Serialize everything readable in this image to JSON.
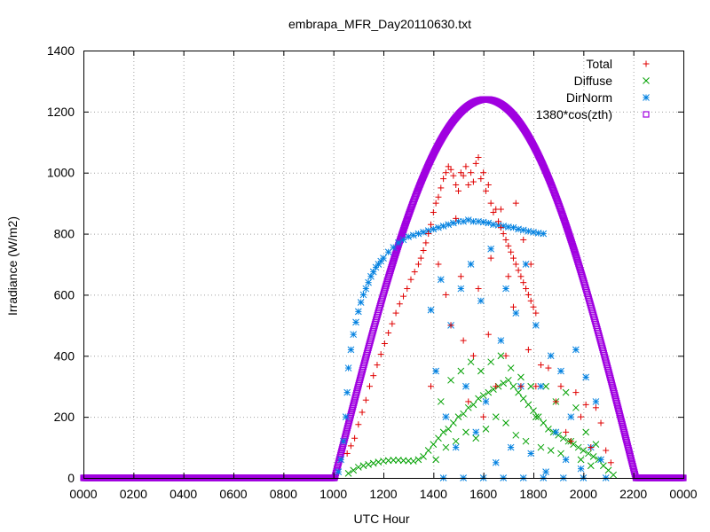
{
  "chart_data": {
    "type": "scatter",
    "title": "embrapa_MFR_Day20110630.txt",
    "xlabel": "UTC Hour",
    "ylabel": "Irradiance (W/m2)",
    "xlim": [
      0,
      24
    ],
    "ylim": [
      0,
      1400
    ],
    "x_ticks": [
      0,
      2,
      4,
      6,
      8,
      10,
      12,
      14,
      16,
      18,
      20,
      22,
      24
    ],
    "x_tick_labels": [
      "0000",
      "0200",
      "0400",
      "0600",
      "0800",
      "1000",
      "1200",
      "1400",
      "1600",
      "1800",
      "2000",
      "2200",
      "0000"
    ],
    "y_ticks": [
      0,
      200,
      400,
      600,
      800,
      1000,
      1200,
      1400
    ],
    "y_tick_labels": [
      "0",
      "200",
      "400",
      "600",
      "800",
      "1000",
      "1200",
      "1400"
    ],
    "grid": true,
    "legend_position": "top-right",
    "series": [
      {
        "name": "Total",
        "marker": "plus",
        "color": "#e00000",
        "points": [
          [
            10.55,
            80
          ],
          [
            10.7,
            105
          ],
          [
            10.85,
            130
          ],
          [
            11.0,
            175
          ],
          [
            11.15,
            215
          ],
          [
            11.3,
            255
          ],
          [
            11.45,
            300
          ],
          [
            11.6,
            335
          ],
          [
            11.75,
            370
          ],
          [
            11.9,
            405
          ],
          [
            12.05,
            440
          ],
          [
            12.2,
            475
          ],
          [
            12.35,
            505
          ],
          [
            12.5,
            540
          ],
          [
            12.65,
            570
          ],
          [
            12.8,
            595
          ],
          [
            12.95,
            620
          ],
          [
            13.1,
            650
          ],
          [
            13.25,
            675
          ],
          [
            13.4,
            700
          ],
          [
            13.5,
            720
          ],
          [
            13.6,
            745
          ],
          [
            13.7,
            770
          ],
          [
            13.8,
            800
          ],
          [
            13.9,
            830
          ],
          [
            14.0,
            870
          ],
          [
            14.1,
            900
          ],
          [
            14.2,
            920
          ],
          [
            14.3,
            950
          ],
          [
            14.4,
            980
          ],
          [
            14.5,
            1000
          ],
          [
            14.6,
            1020
          ],
          [
            14.7,
            1010
          ],
          [
            14.8,
            990
          ],
          [
            14.9,
            960
          ],
          [
            15.0,
            940
          ],
          [
            15.1,
            1000
          ],
          [
            15.2,
            990
          ],
          [
            15.3,
            1020
          ],
          [
            15.4,
            960
          ],
          [
            15.5,
            1000
          ],
          [
            15.6,
            970
          ],
          [
            15.7,
            1030
          ],
          [
            15.8,
            1050
          ],
          [
            15.9,
            980
          ],
          [
            16.0,
            1000
          ],
          [
            16.1,
            940
          ],
          [
            16.2,
            960
          ],
          [
            16.3,
            900
          ],
          [
            16.4,
            870
          ],
          [
            16.5,
            880
          ],
          [
            16.6,
            840
          ],
          [
            16.7,
            820
          ],
          [
            16.8,
            800
          ],
          [
            16.9,
            780
          ],
          [
            17.0,
            760
          ],
          [
            17.1,
            740
          ],
          [
            17.2,
            720
          ],
          [
            17.3,
            700
          ],
          [
            17.4,
            680
          ],
          [
            17.5,
            660
          ],
          [
            17.6,
            640
          ],
          [
            17.7,
            620
          ],
          [
            17.8,
            600
          ],
          [
            17.9,
            580
          ],
          [
            18.0,
            560
          ],
          [
            18.1,
            540
          ],
          [
            13.9,
            300
          ],
          [
            14.2,
            700
          ],
          [
            14.5,
            600
          ],
          [
            14.7,
            500
          ],
          [
            14.9,
            850
          ],
          [
            15.1,
            660
          ],
          [
            15.2,
            450
          ],
          [
            15.4,
            250
          ],
          [
            15.6,
            400
          ],
          [
            15.8,
            620
          ],
          [
            16.0,
            200
          ],
          [
            16.2,
            470
          ],
          [
            16.3,
            720
          ],
          [
            16.5,
            300
          ],
          [
            16.7,
            880
          ],
          [
            16.9,
            400
          ],
          [
            17.0,
            660
          ],
          [
            17.2,
            560
          ],
          [
            17.3,
            900
          ],
          [
            17.5,
            300
          ],
          [
            17.6,
            780
          ],
          [
            17.8,
            420
          ],
          [
            17.9,
            700
          ],
          [
            18.1,
            300
          ],
          [
            18.3,
            370
          ],
          [
            18.6,
            360
          ],
          [
            18.9,
            250
          ],
          [
            19.1,
            300
          ],
          [
            19.3,
            150
          ],
          [
            19.5,
            120
          ],
          [
            19.7,
            280
          ],
          [
            19.9,
            200
          ],
          [
            20.1,
            240
          ],
          [
            20.3,
            100
          ],
          [
            20.5,
            230
          ],
          [
            20.7,
            180
          ],
          [
            20.9,
            90
          ],
          [
            21.1,
            50
          ]
        ]
      },
      {
        "name": "Diffuse",
        "marker": "cross",
        "color": "#00a000",
        "points": [
          [
            10.6,
            15
          ],
          [
            10.8,
            25
          ],
          [
            11.0,
            35
          ],
          [
            11.2,
            40
          ],
          [
            11.4,
            44
          ],
          [
            11.6,
            48
          ],
          [
            11.8,
            52
          ],
          [
            12.0,
            55
          ],
          [
            12.2,
            57
          ],
          [
            12.4,
            58
          ],
          [
            12.6,
            58
          ],
          [
            12.8,
            57
          ],
          [
            13.0,
            56
          ],
          [
            13.2,
            55
          ],
          [
            13.4,
            60
          ],
          [
            13.6,
            70
          ],
          [
            13.8,
            90
          ],
          [
            14.0,
            110
          ],
          [
            14.2,
            130
          ],
          [
            14.4,
            150
          ],
          [
            14.6,
            160
          ],
          [
            14.8,
            180
          ],
          [
            15.0,
            200
          ],
          [
            15.2,
            210
          ],
          [
            15.4,
            230
          ],
          [
            15.6,
            240
          ],
          [
            15.8,
            260
          ],
          [
            16.0,
            270
          ],
          [
            16.2,
            280
          ],
          [
            16.4,
            290
          ],
          [
            16.6,
            300
          ],
          [
            16.8,
            310
          ],
          [
            17.0,
            320
          ],
          [
            17.2,
            300
          ],
          [
            17.4,
            280
          ],
          [
            17.6,
            260
          ],
          [
            17.8,
            240
          ],
          [
            18.0,
            220
          ],
          [
            18.2,
            200
          ],
          [
            18.4,
            180
          ],
          [
            18.6,
            160
          ],
          [
            18.8,
            150
          ],
          [
            19.0,
            140
          ],
          [
            19.2,
            130
          ],
          [
            19.4,
            120
          ],
          [
            19.6,
            110
          ],
          [
            19.8,
            100
          ],
          [
            20.0,
            90
          ],
          [
            20.2,
            80
          ],
          [
            20.4,
            70
          ],
          [
            20.6,
            60
          ],
          [
            20.8,
            40
          ],
          [
            21.0,
            25
          ],
          [
            21.2,
            10
          ],
          [
            14.1,
            60
          ],
          [
            14.3,
            250
          ],
          [
            14.5,
            100
          ],
          [
            14.7,
            320
          ],
          [
            14.9,
            120
          ],
          [
            15.1,
            350
          ],
          [
            15.3,
            150
          ],
          [
            15.5,
            380
          ],
          [
            15.7,
            130
          ],
          [
            15.9,
            350
          ],
          [
            16.1,
            160
          ],
          [
            16.3,
            380
          ],
          [
            16.5,
            200
          ],
          [
            16.7,
            400
          ],
          [
            16.9,
            180
          ],
          [
            17.1,
            360
          ],
          [
            17.3,
            140
          ],
          [
            17.5,
            330
          ],
          [
            17.7,
            120
          ],
          [
            17.9,
            300
          ],
          [
            18.1,
            200
          ],
          [
            18.3,
            100
          ],
          [
            18.5,
            300
          ],
          [
            18.7,
            90
          ],
          [
            18.9,
            250
          ],
          [
            19.1,
            80
          ],
          [
            19.3,
            280
          ],
          [
            19.5,
            120
          ],
          [
            19.7,
            230
          ],
          [
            19.9,
            60
          ],
          [
            20.1,
            150
          ],
          [
            20.3,
            40
          ],
          [
            20.5,
            110
          ]
        ]
      },
      {
        "name": "DirNorm",
        "marker": "star",
        "color": "#0080e0",
        "points": [
          [
            10.2,
            20
          ],
          [
            10.3,
            60
          ],
          [
            10.4,
            120
          ],
          [
            10.5,
            200
          ],
          [
            10.55,
            280
          ],
          [
            10.6,
            360
          ],
          [
            10.7,
            420
          ],
          [
            10.8,
            470
          ],
          [
            10.9,
            510
          ],
          [
            11.0,
            545
          ],
          [
            11.1,
            575
          ],
          [
            11.2,
            600
          ],
          [
            11.3,
            620
          ],
          [
            11.4,
            640
          ],
          [
            11.5,
            660
          ],
          [
            11.6,
            675
          ],
          [
            11.7,
            690
          ],
          [
            11.8,
            700
          ],
          [
            11.9,
            710
          ],
          [
            12.0,
            720
          ],
          [
            12.2,
            740
          ],
          [
            12.4,
            755
          ],
          [
            12.6,
            770
          ],
          [
            12.8,
            780
          ],
          [
            13.0,
            790
          ],
          [
            13.2,
            795
          ],
          [
            13.4,
            800
          ],
          [
            13.6,
            805
          ],
          [
            13.8,
            810
          ],
          [
            14.0,
            815
          ],
          [
            14.2,
            820
          ],
          [
            14.4,
            825
          ],
          [
            14.6,
            830
          ],
          [
            14.8,
            835
          ],
          [
            15.0,
            840
          ],
          [
            15.2,
            840
          ],
          [
            15.4,
            845
          ],
          [
            15.6,
            840
          ],
          [
            15.8,
            840
          ],
          [
            16.0,
            838
          ],
          [
            16.2,
            835
          ],
          [
            16.4,
            830
          ],
          [
            16.6,
            828
          ],
          [
            16.8,
            825
          ],
          [
            17.0,
            822
          ],
          [
            17.2,
            820
          ],
          [
            17.4,
            815
          ],
          [
            17.6,
            812
          ],
          [
            17.8,
            808
          ],
          [
            18.0,
            805
          ],
          [
            18.2,
            802
          ],
          [
            18.4,
            800
          ],
          [
            13.9,
            550
          ],
          [
            14.1,
            350
          ],
          [
            14.3,
            650
          ],
          [
            14.5,
            200
          ],
          [
            14.7,
            500
          ],
          [
            14.9,
            100
          ],
          [
            15.1,
            620
          ],
          [
            15.3,
            300
          ],
          [
            15.5,
            700
          ],
          [
            15.7,
            150
          ],
          [
            15.9,
            580
          ],
          [
            16.1,
            250
          ],
          [
            16.3,
            750
          ],
          [
            16.5,
            50
          ],
          [
            16.7,
            450
          ],
          [
            16.9,
            620
          ],
          [
            17.1,
            100
          ],
          [
            17.3,
            540
          ],
          [
            17.5,
            300
          ],
          [
            17.7,
            700
          ],
          [
            17.9,
            80
          ],
          [
            18.1,
            500
          ],
          [
            18.3,
            300
          ],
          [
            18.5,
            20
          ],
          [
            18.7,
            400
          ],
          [
            18.9,
            150
          ],
          [
            19.1,
            350
          ],
          [
            19.3,
            60
          ],
          [
            19.5,
            200
          ],
          [
            19.7,
            420
          ],
          [
            19.9,
            30
          ],
          [
            20.1,
            330
          ],
          [
            20.3,
            100
          ],
          [
            20.5,
            250
          ],
          [
            20.7,
            60
          ],
          [
            20.9,
            0
          ],
          [
            14.4,
            0
          ],
          [
            15.2,
            0
          ],
          [
            16.0,
            0
          ],
          [
            16.8,
            0
          ],
          [
            17.6,
            0
          ],
          [
            18.4,
            0
          ],
          [
            19.2,
            0
          ],
          [
            20.0,
            0
          ]
        ]
      },
      {
        "name": "1380*cos(zth)",
        "marker": "square",
        "color": "#a000e0",
        "curve": {
          "zero_before": 10.05,
          "zero_after": 22.1,
          "peak_hour": 16.1,
          "peak_value": 1240
        }
      }
    ]
  }
}
